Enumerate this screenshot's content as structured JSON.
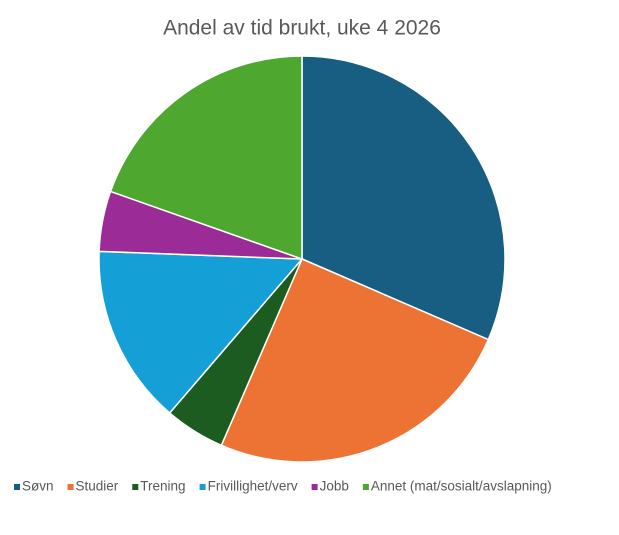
{
  "chart_data": {
    "type": "pie",
    "title": "Andel av tid brukt, uke 4 2026",
    "categories": [
      "Søvn",
      "Studier",
      "Trening",
      "Frivillighet/verv",
      "Jobb",
      "Annet (mat/sosialt/avslapning)"
    ],
    "values": [
      31.5,
      25,
      4.8,
      14.3,
      4.8,
      19.6
    ],
    "colors": [
      "#175e82",
      "#ec7333",
      "#1d5c20",
      "#149fd7",
      "#9b2b96",
      "#4ea72e"
    ],
    "legend": "bottom"
  }
}
